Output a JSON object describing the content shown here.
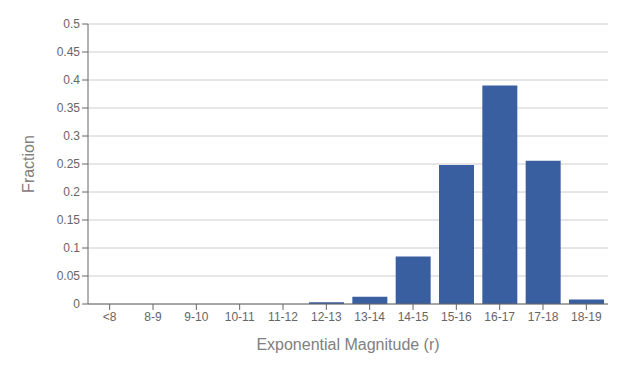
{
  "chart_data": {
    "type": "bar",
    "categories": [
      "<8",
      "8-9",
      "9-10",
      "10-11",
      "11-12",
      "12-13",
      "13-14",
      "14-15",
      "15-16",
      "16-17",
      "17-18",
      "18-19"
    ],
    "values": [
      0.0,
      0.0,
      0.0,
      0.0,
      0.0,
      0.003,
      0.013,
      0.085,
      0.248,
      0.39,
      0.256,
      0.008
    ],
    "color": "#3A5FA0",
    "xlabel": "Exponential Magnitude (r)",
    "ylabel": "Fraction",
    "ylim": [
      0,
      0.5
    ],
    "yticks": [
      0,
      0.05,
      0.1,
      0.15,
      0.2,
      0.25,
      0.3,
      0.35,
      0.4,
      0.45,
      0.5
    ],
    "grid": true
  }
}
